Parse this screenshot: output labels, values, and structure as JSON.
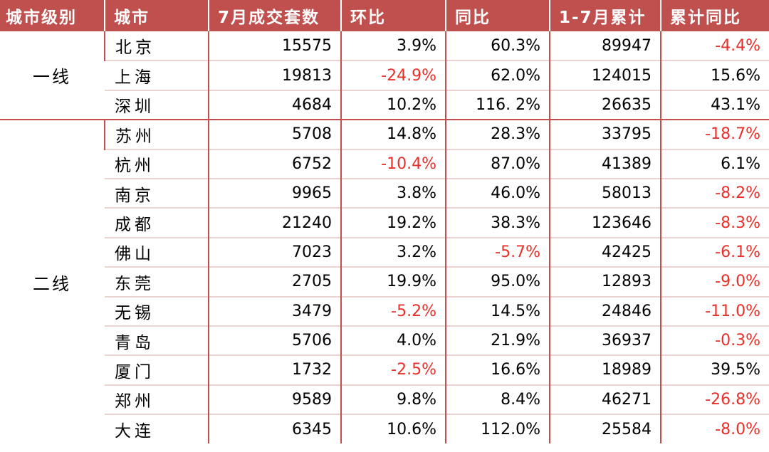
{
  "headers": [
    "城市级别",
    "城市",
    "7月成交套数",
    "环比",
    "同比",
    "1-7月累计",
    "累计同比"
  ],
  "groups": [
    {
      "level": "一线",
      "rows": [
        {
          "city": "北京",
          "sales": "15575",
          "mom": "3.9%",
          "yoy": "60.3%",
          "ytd": "89947",
          "ytd_yoy": "-4.4%"
        },
        {
          "city": "上海",
          "sales": "19813",
          "mom": "-24.9%",
          "yoy": "62.0%",
          "ytd": "124015",
          "ytd_yoy": "15.6%"
        },
        {
          "city": "深圳",
          "sales": "4684",
          "mom": "10.2%",
          "yoy": "116. 2%",
          "ytd": "26635",
          "ytd_yoy": "43.1%"
        }
      ]
    },
    {
      "level": "二线",
      "rows": [
        {
          "city": "苏州",
          "sales": "5708",
          "mom": "14.8%",
          "yoy": "28.3%",
          "ytd": "33795",
          "ytd_yoy": "-18.7%"
        },
        {
          "city": "杭州",
          "sales": "6752",
          "mom": "-10.4%",
          "yoy": "87.0%",
          "ytd": "41389",
          "ytd_yoy": "6.1%"
        },
        {
          "city": "南京",
          "sales": "9965",
          "mom": "3.8%",
          "yoy": "46.0%",
          "ytd": "58013",
          "ytd_yoy": "-8.2%"
        },
        {
          "city": "成都",
          "sales": "21240",
          "mom": "19.2%",
          "yoy": "38.3%",
          "ytd": "123646",
          "ytd_yoy": "-8.3%"
        },
        {
          "city": "佛山",
          "sales": "7023",
          "mom": "3.2%",
          "yoy": "-5.7%",
          "ytd": "42425",
          "ytd_yoy": "-6.1%"
        },
        {
          "city": "东莞",
          "sales": "2705",
          "mom": "19.9%",
          "yoy": "95.0%",
          "ytd": "12893",
          "ytd_yoy": "-9.0%"
        },
        {
          "city": "无锡",
          "sales": "3479",
          "mom": "-5.2%",
          "yoy": "14.5%",
          "ytd": "24846",
          "ytd_yoy": "-11.0%"
        },
        {
          "city": "青岛",
          "sales": "5706",
          "mom": "4.0%",
          "yoy": "21.9%",
          "ytd": "36937",
          "ytd_yoy": "-0.3%"
        },
        {
          "city": "厦门",
          "sales": "1732",
          "mom": "-2.5%",
          "yoy": "16.6%",
          "ytd": "18989",
          "ytd_yoy": "39.5%"
        },
        {
          "city": "郑州",
          "sales": "9589",
          "mom": "9.8%",
          "yoy": "8.4%",
          "ytd": "46271",
          "ytd_yoy": "-26.8%"
        },
        {
          "city": "大连",
          "sales": "6345",
          "mom": "10.6%",
          "yoy": "112.0%",
          "ytd": "25584",
          "ytd_yoy": "-8.0%"
        }
      ]
    }
  ],
  "colors": {
    "header_bg": "#c0504d",
    "header_text": "#ffffff",
    "negative": "#e8302a",
    "positive": "#000000"
  }
}
